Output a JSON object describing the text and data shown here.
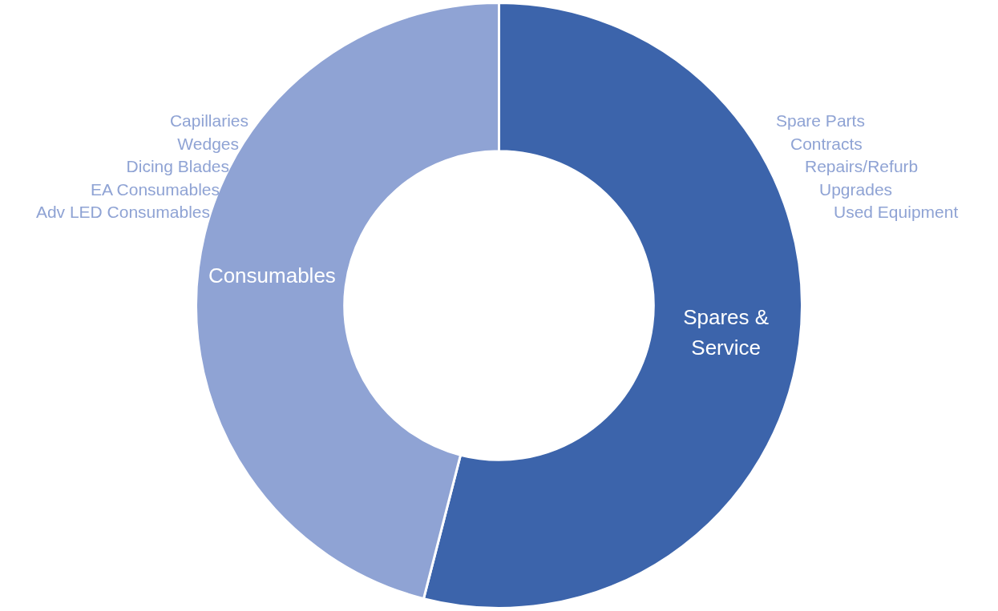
{
  "chart_data": {
    "type": "donut",
    "categories": [
      "Spares & Service",
      "Consumables"
    ],
    "values": [
      54,
      46
    ],
    "colors": [
      "#3c64ab",
      "#8fa3d4"
    ],
    "annotations": [
      "Capillaries",
      "Wedges",
      "Dicing Blades",
      "EA Consumables",
      "Adv LED Consumables",
      "Spare Parts",
      "Contracts",
      "Repairs/Refurb",
      "Upgrades",
      "Used Equipment"
    ]
  }
}
